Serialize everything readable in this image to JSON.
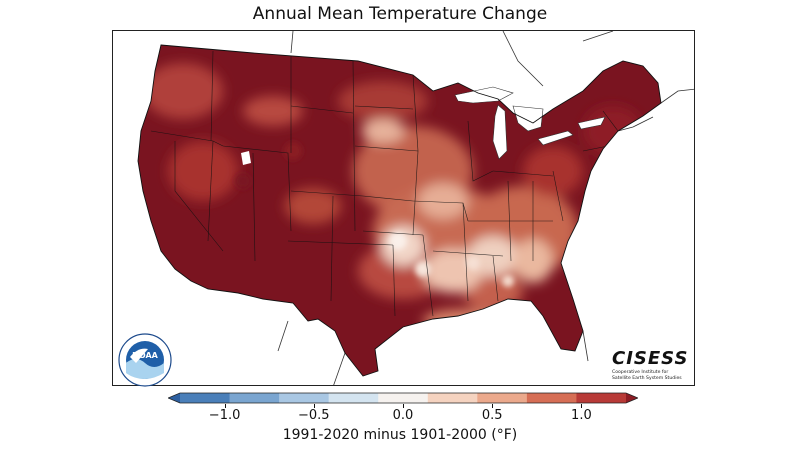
{
  "title": "Annual Mean Temperature Change",
  "colorbar": {
    "label": "1991-2020 minus 1901-2000 (°F)",
    "ticks": [
      {
        "value": -1.0,
        "label": "−1.0"
      },
      {
        "value": -0.5,
        "label": "−0.5"
      },
      {
        "value": 0.0,
        "label": "0.0"
      },
      {
        "value": 0.5,
        "label": "0.5"
      },
      {
        "value": 1.0,
        "label": "1.0"
      }
    ],
    "range": [
      -1.25,
      1.25
    ],
    "colors": [
      "#2d5fa0",
      "#4a7fb9",
      "#7aa5d0",
      "#a9c7e3",
      "#d4e4f0",
      "#f6f2ef",
      "#f5d3c0",
      "#eba98c",
      "#d66e55",
      "#b83a37",
      "#8c1c24"
    ]
  },
  "logos": {
    "noaa": "NOAA",
    "cisess_name": "CISESS",
    "cisess_subtitle": [
      "Cooperative Institute for",
      "Satellite Earth System Studies"
    ]
  },
  "map": {
    "region": "Contiguous United States",
    "dominant_color": "#7a1420",
    "warm_color": "#a8322f",
    "light_color": "#f2d6c8"
  }
}
